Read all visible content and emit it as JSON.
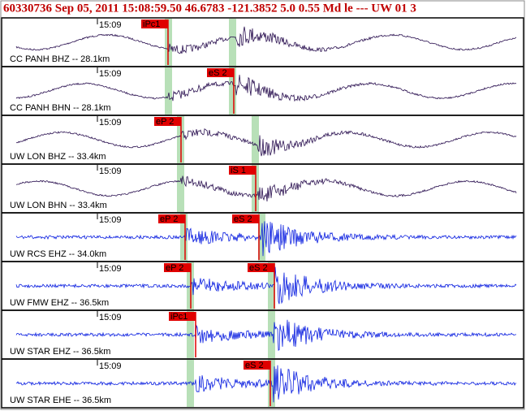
{
  "header": {
    "title": "60330736 Sep 05, 2011 15:08:59.50   46.6783 -121.3852   5.0 0.55 Md le --- UW 01   3"
  },
  "traces": [
    {
      "station": "CC PANH BHZ -- 28.1km",
      "time_label": "15:09",
      "picks": [
        "iPc1"
      ]
    },
    {
      "station": "CC PANH BHN -- 28.1km",
      "time_label": "15:09",
      "picks": [
        "eS 2"
      ]
    },
    {
      "station": "UW LON BHZ -- 33.4km",
      "time_label": "15:09",
      "picks": [
        "eP 2"
      ]
    },
    {
      "station": "UW LON BHN -- 33.4km",
      "time_label": "15:09",
      "picks": [
        "iS 1"
      ]
    },
    {
      "station": "UW RCS EHZ -- 34.0km",
      "time_label": "15:09",
      "picks": [
        "eP 2",
        "eS 2"
      ]
    },
    {
      "station": "UW FMW EHZ -- 36.5km",
      "time_label": "15:09",
      "picks": [
        "eP 2",
        "eS 2"
      ]
    },
    {
      "station": "UW STAR EHZ -- 36.5km",
      "time_label": "15:09",
      "picks": [
        "iPc1"
      ]
    },
    {
      "station": "UW STAR EHE -- 36.5km",
      "time_label": "15:09",
      "picks": [
        "eS 2"
      ]
    }
  ]
}
